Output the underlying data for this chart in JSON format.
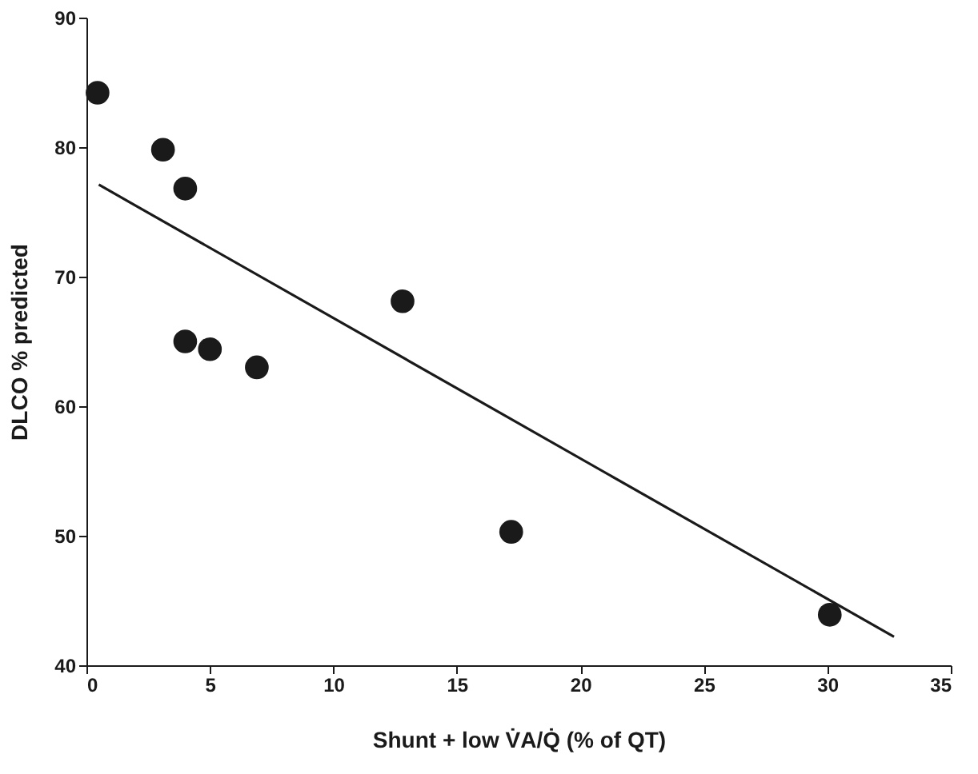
{
  "chart_data": {
    "type": "scatter",
    "xlabel": "Shunt + low V̇A/Q̇  (% of QT)",
    "ylabel": "DLCO  % predicted",
    "x": [
      0.45,
      3.1,
      4.0,
      4.0,
      5.0,
      6.9,
      12.8,
      17.2,
      30.1
    ],
    "series": [
      {
        "color": "#1a1a1a",
        "marker": "circle",
        "values": [
          84.2,
          79.8,
          76.8,
          65.0,
          64.4,
          63.0,
          68.1,
          50.3,
          43.9
        ]
      },
      {
        "type": "line",
        "color": "#1a1a1a",
        "marker": "none",
        "line_style": "solid",
        "x": [
          0.5,
          32.7
        ],
        "values": [
          77.1,
          42.2
        ]
      }
    ],
    "xlim": [
      0,
      35
    ],
    "ylim": [
      40,
      90
    ],
    "xticks": [
      0,
      5,
      10,
      15,
      20,
      25,
      30,
      35
    ],
    "yticks": [
      40,
      50,
      60,
      70,
      80,
      90
    ],
    "grid": false
  }
}
